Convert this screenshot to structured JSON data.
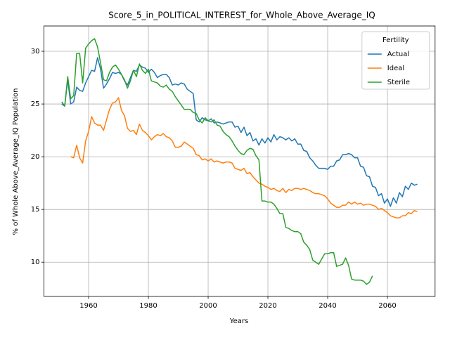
{
  "chart_data": {
    "type": "line",
    "title": "Score_5_in_POLITICAL_INTEREST_for_Whole_Above_Average_IQ",
    "xlabel": "Years",
    "ylabel": "% of Whole Above_Average_IQ Population",
    "legend_title": "Fertility",
    "legend": "upper right",
    "grid": true,
    "xlim": [
      1945.05,
      2075.95
    ],
    "ylim": [
      6.75,
      32.4
    ],
    "xticks": [
      1960,
      1980,
      2000,
      2020,
      2040,
      2060
    ],
    "yticks": [
      10,
      15,
      20,
      25,
      30
    ],
    "x": [
      1951,
      1952,
      1953,
      1954,
      1955,
      1956,
      1957,
      1958,
      1959,
      1960,
      1961,
      1962,
      1963,
      1964,
      1965,
      1966,
      1967,
      1968,
      1969,
      1970,
      1971,
      1972,
      1973,
      1974,
      1975,
      1976,
      1977,
      1978,
      1979,
      1980,
      1981,
      1982,
      1983,
      1984,
      1985,
      1986,
      1987,
      1988,
      1989,
      1990,
      1991,
      1992,
      1993,
      1994,
      1995,
      1996,
      1997,
      1998,
      1999,
      2000,
      2001,
      2002,
      2003,
      2004,
      2005,
      2006,
      2007,
      2008,
      2009,
      2010,
      2011,
      2012,
      2013,
      2014,
      2015,
      2016,
      2017,
      2018,
      2019,
      2020,
      2021,
      2022,
      2023,
      2024,
      2025,
      2026,
      2027,
      2028,
      2029,
      2030,
      2031,
      2032,
      2033,
      2034,
      2035,
      2036,
      2037,
      2038,
      2039,
      2040,
      2041,
      2042,
      2043,
      2044,
      2045,
      2046,
      2047,
      2048,
      2049,
      2050,
      2051,
      2052,
      2053,
      2054,
      2055,
      2056,
      2057,
      2058,
      2059,
      2060,
      2061,
      2062,
      2063,
      2064,
      2065,
      2066,
      2067,
      2068,
      2069,
      2070
    ],
    "series": [
      {
        "name": "Actual",
        "color": "#1f77b4",
        "values": [
          25.2,
          24.8,
          27.3,
          25.0,
          25.2,
          26.6,
          26.3,
          26.2,
          27.0,
          27.6,
          28.2,
          28.1,
          29.4,
          28.3,
          26.5,
          26.9,
          27.4,
          28.0,
          27.9,
          28.0,
          27.8,
          27.2,
          26.8,
          27.5,
          28.2,
          28.1,
          28.7,
          28.5,
          28.4,
          28.0,
          28.3,
          28.0,
          27.5,
          27.7,
          27.8,
          27.8,
          27.5,
          26.8,
          26.9,
          26.8,
          27.0,
          26.9,
          26.4,
          26.2,
          26.0,
          23.5,
          23.3,
          23.7,
          23.5,
          23.4,
          23.6,
          23.2,
          23.3,
          23.2,
          23.1,
          23.2,
          23.3,
          23.3,
          22.8,
          22.9,
          22.3,
          22.8,
          22.0,
          22.3,
          21.5,
          21.7,
          21.1,
          21.7,
          21.3,
          21.8,
          21.4,
          22.1,
          21.6,
          21.9,
          21.8,
          21.6,
          21.8,
          21.5,
          21.7,
          21.2,
          21.2,
          20.6,
          20.5,
          19.9,
          19.6,
          19.2,
          18.9,
          18.9,
          18.9,
          18.8,
          19.1,
          19.1,
          19.6,
          19.7,
          20.2,
          20.2,
          20.3,
          20.2,
          19.9,
          19.9,
          19.1,
          19.0,
          18.2,
          18.1,
          17.2,
          17.1,
          16.3,
          16.5,
          15.6,
          16.0,
          15.3,
          16.1,
          15.6,
          16.6,
          16.2,
          17.2,
          16.9,
          17.5,
          17.3,
          17.4
        ]
      },
      {
        "name": "Ideal",
        "color": "#ff7f0e",
        "values": [
          null,
          null,
          null,
          20.0,
          19.9,
          21.1,
          19.9,
          19.4,
          21.5,
          22.4,
          23.8,
          23.2,
          23.0,
          23.0,
          22.5,
          23.5,
          24.5,
          25.1,
          25.2,
          25.6,
          24.4,
          23.9,
          22.7,
          22.4,
          22.5,
          22.1,
          23.1,
          22.5,
          22.3,
          22.0,
          21.6,
          21.9,
          22.1,
          22.0,
          22.2,
          21.9,
          21.8,
          21.5,
          20.9,
          20.9,
          21.0,
          21.4,
          21.2,
          21.0,
          20.8,
          20.2,
          20.1,
          19.7,
          19.8,
          19.6,
          19.8,
          19.5,
          19.6,
          19.5,
          19.4,
          19.5,
          19.5,
          19.4,
          18.9,
          18.8,
          18.7,
          18.9,
          18.4,
          18.5,
          18.1,
          17.8,
          17.5,
          17.4,
          17.2,
          17.1,
          16.9,
          17.0,
          16.8,
          16.7,
          17.0,
          16.6,
          16.9,
          16.8,
          17.0,
          17.0,
          16.9,
          17.0,
          16.9,
          16.8,
          16.6,
          16.5,
          16.5,
          16.4,
          16.3,
          16.0,
          15.6,
          15.4,
          15.2,
          15.2,
          15.4,
          15.4,
          15.7,
          15.5,
          15.7,
          15.5,
          15.6,
          15.4,
          15.5,
          15.5,
          15.4,
          15.3,
          15.0,
          15.1,
          14.9,
          14.7,
          14.4,
          14.3,
          14.2,
          14.2,
          14.4,
          14.4,
          14.7,
          14.6,
          14.9,
          14.8
        ]
      },
      {
        "name": "Sterile",
        "color": "#2ca02c",
        "values": [
          25.0,
          24.8,
          27.6,
          25.5,
          25.8,
          29.8,
          29.8,
          27.0,
          30.3,
          30.7,
          31.0,
          31.2,
          30.4,
          28.9,
          27.3,
          27.2,
          28.0,
          28.5,
          28.7,
          28.3,
          27.8,
          27.3,
          26.5,
          27.2,
          28.2,
          27.6,
          28.8,
          28.2,
          27.9,
          28.3,
          27.2,
          27.1,
          27.0,
          26.7,
          26.6,
          26.8,
          26.4,
          26.2,
          25.7,
          25.3,
          24.9,
          24.5,
          24.5,
          24.5,
          24.2,
          24.1,
          23.5,
          23.2,
          23.7,
          23.4,
          23.3,
          23.5,
          23.0,
          22.9,
          22.4,
          22.1,
          21.9,
          21.5,
          21.0,
          20.6,
          20.3,
          20.2,
          20.6,
          20.8,
          20.7,
          20.1,
          19.7,
          15.8,
          15.8,
          15.7,
          15.7,
          15.5,
          15.1,
          14.6,
          14.6,
          13.3,
          13.2,
          13.0,
          12.9,
          12.9,
          12.7,
          11.9,
          11.6,
          11.2,
          10.2,
          10.0,
          9.8,
          10.3,
          10.8,
          10.8,
          10.9,
          10.9,
          9.6,
          9.7,
          9.8,
          10.4,
          9.7,
          8.4,
          8.3,
          8.3,
          8.3,
          8.2,
          7.9,
          8.1,
          8.7,
          null,
          null,
          null,
          null,
          null,
          null,
          null,
          null,
          null,
          null,
          null,
          null,
          null,
          null,
          null
        ]
      }
    ]
  }
}
